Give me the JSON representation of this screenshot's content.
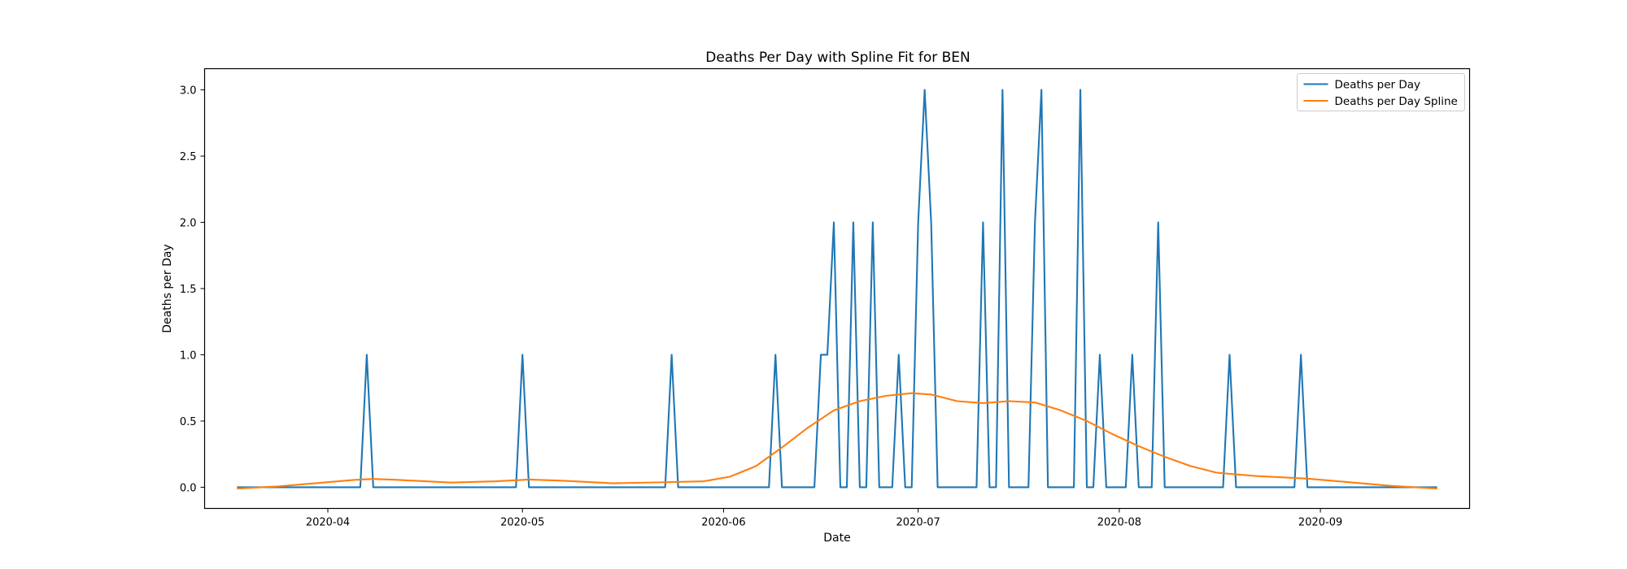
{
  "chart_data": {
    "type": "line",
    "title": "Deaths Per Day with Spline Fit for BEN",
    "xlabel": "Date",
    "ylabel": "Deaths per Day",
    "x_range": [
      "2020-03-13",
      "2020-09-24"
    ],
    "ylim": [
      -0.16,
      3.16
    ],
    "x_ticks": [
      "2020-04",
      "2020-05",
      "2020-06",
      "2020-07",
      "2020-08",
      "2020-09"
    ],
    "y_ticks": [
      "0.0",
      "0.5",
      "1.0",
      "1.5",
      "2.0",
      "2.5",
      "3.0"
    ],
    "grid": false,
    "legend_position": "top-right",
    "series": [
      {
        "name": "Deaths per Day",
        "color": "#1f77b4",
        "points": [
          [
            "2020-03-18",
            0
          ],
          [
            "2020-04-06",
            0
          ],
          [
            "2020-04-07",
            1
          ],
          [
            "2020-04-08",
            0
          ],
          [
            "2020-04-30",
            0
          ],
          [
            "2020-05-01",
            1
          ],
          [
            "2020-05-02",
            0
          ],
          [
            "2020-05-23",
            0
          ],
          [
            "2020-05-24",
            1
          ],
          [
            "2020-05-25",
            0
          ],
          [
            "2020-06-08",
            0
          ],
          [
            "2020-06-09",
            1
          ],
          [
            "2020-06-10",
            0
          ],
          [
            "2020-06-15",
            0
          ],
          [
            "2020-06-16",
            1
          ],
          [
            "2020-06-17",
            1
          ],
          [
            "2020-06-18",
            2
          ],
          [
            "2020-06-19",
            0
          ],
          [
            "2020-06-20",
            0
          ],
          [
            "2020-06-21",
            2
          ],
          [
            "2020-06-22",
            0
          ],
          [
            "2020-06-23",
            0
          ],
          [
            "2020-06-24",
            2
          ],
          [
            "2020-06-25",
            0
          ],
          [
            "2020-06-26",
            0
          ],
          [
            "2020-06-27",
            0
          ],
          [
            "2020-06-28",
            1
          ],
          [
            "2020-06-29",
            0
          ],
          [
            "2020-06-30",
            0
          ],
          [
            "2020-07-01",
            2
          ],
          [
            "2020-07-02",
            3
          ],
          [
            "2020-07-03",
            2
          ],
          [
            "2020-07-04",
            0
          ],
          [
            "2020-07-10",
            0
          ],
          [
            "2020-07-11",
            2
          ],
          [
            "2020-07-12",
            0
          ],
          [
            "2020-07-13",
            0
          ],
          [
            "2020-07-14",
            3
          ],
          [
            "2020-07-15",
            0
          ],
          [
            "2020-07-18",
            0
          ],
          [
            "2020-07-19",
            2
          ],
          [
            "2020-07-20",
            3
          ],
          [
            "2020-07-21",
            0
          ],
          [
            "2020-07-25",
            0
          ],
          [
            "2020-07-26",
            3
          ],
          [
            "2020-07-27",
            0
          ],
          [
            "2020-07-28",
            0
          ],
          [
            "2020-07-29",
            1
          ],
          [
            "2020-07-30",
            0
          ],
          [
            "2020-08-02",
            0
          ],
          [
            "2020-08-03",
            1
          ],
          [
            "2020-08-04",
            0
          ],
          [
            "2020-08-06",
            0
          ],
          [
            "2020-08-07",
            2
          ],
          [
            "2020-08-08",
            0
          ],
          [
            "2020-08-17",
            0
          ],
          [
            "2020-08-18",
            1
          ],
          [
            "2020-08-19",
            0
          ],
          [
            "2020-08-28",
            0
          ],
          [
            "2020-08-29",
            1
          ],
          [
            "2020-08-30",
            0
          ],
          [
            "2020-09-19",
            0
          ]
        ]
      },
      {
        "name": "Deaths per Day Spline",
        "color": "#ff7f0e",
        "points": [
          [
            "2020-03-18",
            -0.01
          ],
          [
            "2020-03-24",
            0.005
          ],
          [
            "2020-03-30",
            0.03
          ],
          [
            "2020-04-05",
            0.055
          ],
          [
            "2020-04-08",
            0.063
          ],
          [
            "2020-04-12",
            0.055
          ],
          [
            "2020-04-20",
            0.035
          ],
          [
            "2020-04-27",
            0.045
          ],
          [
            "2020-05-02",
            0.058
          ],
          [
            "2020-05-07",
            0.05
          ],
          [
            "2020-05-15",
            0.03
          ],
          [
            "2020-05-23",
            0.038
          ],
          [
            "2020-05-29",
            0.045
          ],
          [
            "2020-06-02",
            0.08
          ],
          [
            "2020-06-06",
            0.16
          ],
          [
            "2020-06-10",
            0.3
          ],
          [
            "2020-06-14",
            0.45
          ],
          [
            "2020-06-18",
            0.58
          ],
          [
            "2020-06-22",
            0.65
          ],
          [
            "2020-06-26",
            0.69
          ],
          [
            "2020-06-30",
            0.71
          ],
          [
            "2020-07-03",
            0.7
          ],
          [
            "2020-07-07",
            0.65
          ],
          [
            "2020-07-11",
            0.635
          ],
          [
            "2020-07-15",
            0.65
          ],
          [
            "2020-07-19",
            0.64
          ],
          [
            "2020-07-23",
            0.58
          ],
          [
            "2020-07-27",
            0.5
          ],
          [
            "2020-07-31",
            0.4
          ],
          [
            "2020-08-04",
            0.31
          ],
          [
            "2020-08-08",
            0.23
          ],
          [
            "2020-08-12",
            0.16
          ],
          [
            "2020-08-16",
            0.11
          ],
          [
            "2020-08-22",
            0.085
          ],
          [
            "2020-08-30",
            0.065
          ],
          [
            "2020-09-05",
            0.04
          ],
          [
            "2020-09-12",
            0.01
          ],
          [
            "2020-09-19",
            -0.01
          ]
        ]
      }
    ]
  }
}
